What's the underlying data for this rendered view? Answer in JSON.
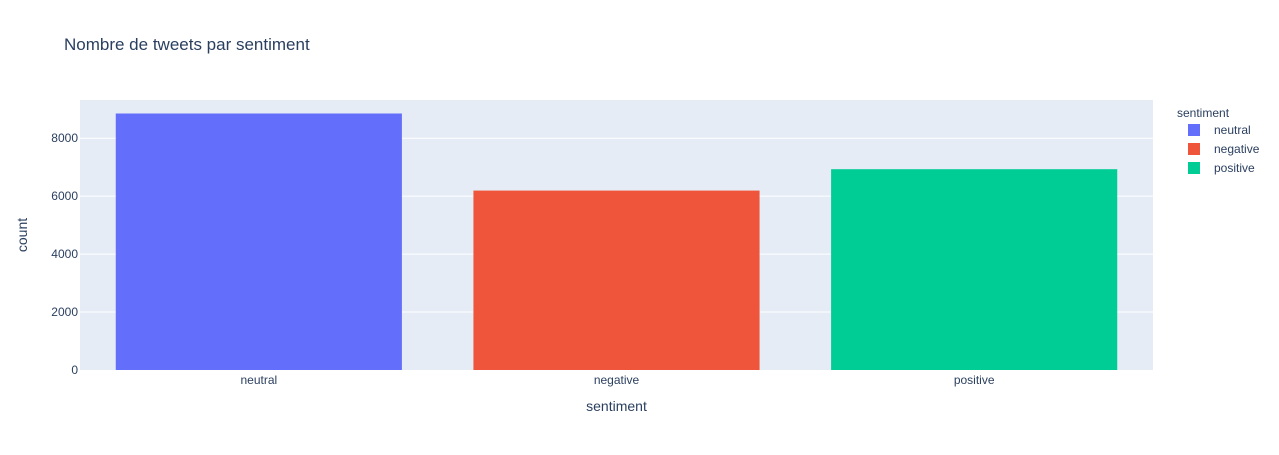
{
  "chart_data": {
    "type": "bar",
    "title": "Nombre de tweets par sentiment",
    "xlabel": "sentiment",
    "ylabel": "count",
    "categories": [
      "neutral",
      "negative",
      "positive"
    ],
    "series": [
      {
        "name": "neutral",
        "values": [
          8853,
          null,
          null
        ],
        "color": "#636efa"
      },
      {
        "name": "negative",
        "values": [
          null,
          6193,
          null
        ],
        "color": "#ef553b"
      },
      {
        "name": "positive",
        "values": [
          null,
          null,
          6931
        ],
        "color": "#00cc96"
      }
    ],
    "ylim": [
      0,
      9319
    ],
    "yticks": [
      0,
      2000,
      4000,
      6000,
      8000
    ],
    "ytick_labels": [
      "0",
      "2000",
      "4000",
      "6000",
      "8000"
    ],
    "grid": true,
    "legend": {
      "title": "sentiment",
      "placement": "right",
      "items": [
        "neutral",
        "negative",
        "positive"
      ]
    },
    "colors": {
      "plot_background": "#e5ecf6",
      "grid": "#ffffff",
      "text": "#2a3f5f"
    }
  }
}
